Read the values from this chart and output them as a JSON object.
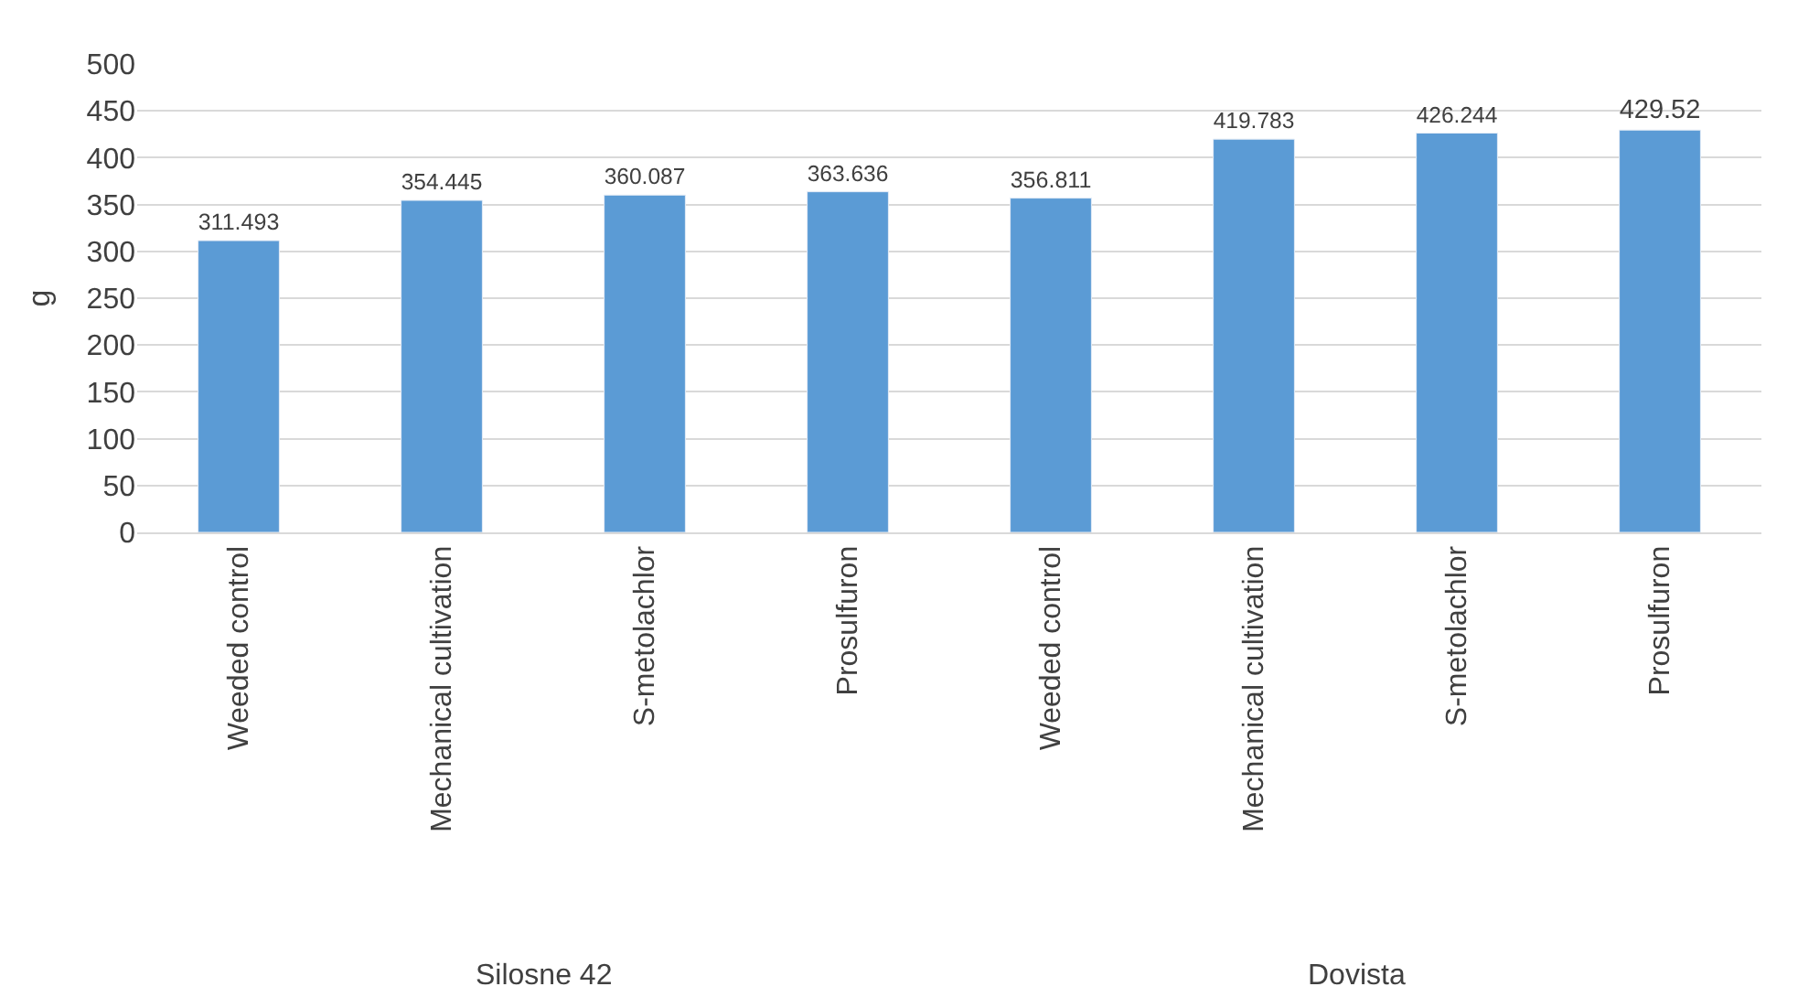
{
  "chart_data": {
    "type": "bar",
    "ylabel": "g",
    "categories": [
      "Weeded control",
      "Mechanical cultivation",
      "S-metolachlor",
      "Prosulfuron",
      "Weeded control",
      "Mechanical cultivation",
      "S-metolachlor",
      "Prosulfuron"
    ],
    "values": [
      311.493,
      354.445,
      360.087,
      363.636,
      356.811,
      419.783,
      426.244,
      429.52
    ],
    "color": "#5b9bd5",
    "ylim": [
      0,
      500
    ],
    "yticks": [
      0,
      50,
      100,
      150,
      200,
      250,
      300,
      350,
      400,
      450,
      500
    ],
    "grid": "y",
    "data_labels": true,
    "legend": false,
    "annotations": [
      "Silosne 42",
      "Dovista"
    ]
  }
}
